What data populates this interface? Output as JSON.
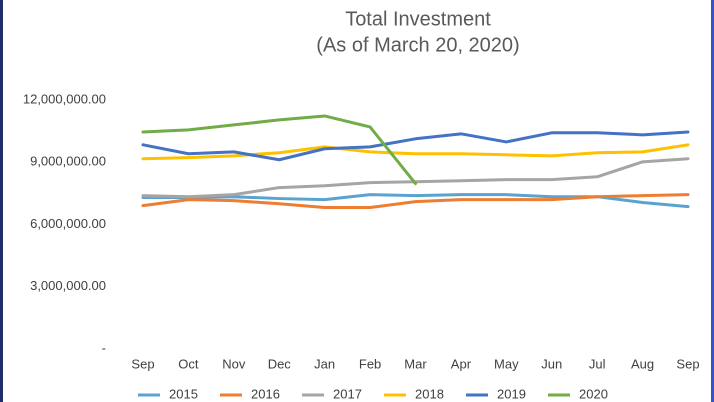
{
  "chart_data": {
    "type": "line",
    "title": "Total Investment",
    "subtitle": "(As of  March 20, 2020)",
    "categories": [
      "Sep",
      "Oct",
      "Nov",
      "Dec",
      "Jan",
      "Feb",
      "Mar",
      "Apr",
      "May",
      "Jun",
      "Jul",
      "Aug",
      "Sep"
    ],
    "series": [
      {
        "name": "2015",
        "color": "#5ba3cf",
        "values": [
          7300000,
          7300000,
          7340000,
          7250000,
          7200000,
          7440000,
          7390000,
          7440000,
          7440000,
          7340000,
          7340000,
          7060000,
          6860000
        ]
      },
      {
        "name": "2016",
        "color": "#ed7d31",
        "values": [
          6910000,
          7200000,
          7150000,
          7000000,
          6820000,
          6820000,
          7100000,
          7200000,
          7200000,
          7200000,
          7340000,
          7390000,
          7440000
        ]
      },
      {
        "name": "2017",
        "color": "#a5a5a5",
        "values": [
          7390000,
          7340000,
          7440000,
          7780000,
          7870000,
          8020000,
          8060000,
          8110000,
          8160000,
          8160000,
          8300000,
          9020000,
          9170000
        ]
      },
      {
        "name": "2018",
        "color": "#ffc000",
        "values": [
          9170000,
          9220000,
          9310000,
          9460000,
          9740000,
          9500000,
          9410000,
          9410000,
          9360000,
          9310000,
          9460000,
          9500000,
          9840000
        ]
      },
      {
        "name": "2019",
        "color": "#4472c4",
        "values": [
          9840000,
          9410000,
          9500000,
          9120000,
          9650000,
          9740000,
          10130000,
          10370000,
          9980000,
          10420000,
          10420000,
          10320000,
          10460000
        ]
      },
      {
        "name": "2020",
        "color": "#70ad47",
        "values": [
          10460000,
          10560000,
          10800000,
          11040000,
          11230000,
          10700000,
          7970000,
          null,
          null,
          null,
          null,
          null,
          null
        ]
      }
    ],
    "ylim": [
      0,
      12000000
    ],
    "yticks": [
      {
        "value": 0,
        "label": "-"
      },
      {
        "value": 3000000,
        "label": "3,000,000.00"
      },
      {
        "value": 6000000,
        "label": "6,000,000.00"
      },
      {
        "value": 9000000,
        "label": "9,000,000.00"
      },
      {
        "value": 12000000,
        "label": "12,000,000.00"
      }
    ],
    "grid": false,
    "legend": "bottom"
  }
}
